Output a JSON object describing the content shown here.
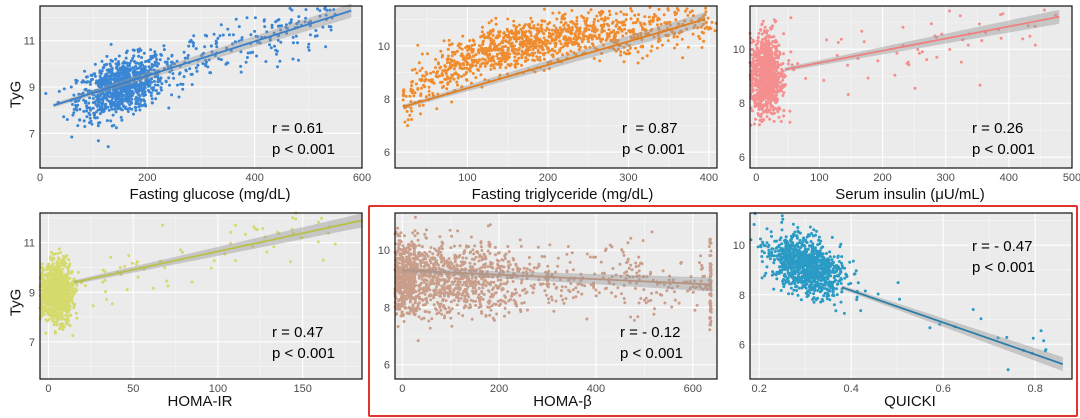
{
  "figure": {
    "highlight_color": "#e0342c",
    "highlight_note": "HOMA-β and QUICKI panels outlined"
  },
  "chart_data": [
    {
      "type": "scatter",
      "id": "glucose",
      "xlabel": "Fasting glucose (mg/dL)",
      "ylabel": "TyG",
      "xlim": [
        0,
        600
      ],
      "ylim": [
        5.5,
        12.5
      ],
      "xticks": [
        "0",
        "200",
        "400",
        "600"
      ],
      "yticks": [
        "7",
        "9",
        "11"
      ],
      "color": "#3a86d4",
      "line_color": "#3a7fc8",
      "fit": {
        "x": [
          25,
          580
        ],
        "y": [
          8.2,
          12.3
        ]
      },
      "cloud": {
        "cx": 150,
        "cy": 9.0,
        "sx": 40,
        "sy": 0.6,
        "n": 900,
        "slope": 0.007,
        "tail_x": [
          200,
          550
        ],
        "tail_n": 220
      },
      "stat_r": "r = 0.61",
      "stat_p": "p < 0.001"
    },
    {
      "type": "scatter",
      "id": "triglyceride",
      "xlabel": "Fasting triglyceride (mg/dL)",
      "ylabel": "",
      "xlim": [
        10,
        410
      ],
      "ylim": [
        5.4,
        11.5
      ],
      "xticks": [
        "100",
        "200",
        "300",
        "400"
      ],
      "yticks": [
        "6",
        "8",
        "10"
      ],
      "color": "#f08c2e",
      "line_color": "#e07f20",
      "fit": {
        "x": [
          20,
          395
        ],
        "y": [
          7.7,
          11.0
        ]
      },
      "cloud": {
        "cx": 150,
        "cy": 9.1,
        "sx": 85,
        "sy": 0.45,
        "n": 1100,
        "curve": "log",
        "tail_x": [
          280,
          400
        ],
        "tail_n": 120
      },
      "stat_r": "r  = 0.87",
      "stat_p": "p < 0.001"
    },
    {
      "type": "scatter",
      "id": "insulin",
      "xlabel": "Serum insulin (μU/mL)",
      "ylabel": "",
      "xlim": [
        -10,
        500
      ],
      "ylim": [
        5.6,
        11.6
      ],
      "xticks": [
        "0",
        "100",
        "200",
        "300",
        "400",
        "500"
      ],
      "yticks": [
        "6",
        "8",
        "10"
      ],
      "color": "#f58f8f",
      "line_color": "#ef8080",
      "fit": {
        "x": [
          45,
          480
        ],
        "y": [
          9.25,
          11.2
        ]
      },
      "cloud": {
        "cx": 15,
        "cy": 9.0,
        "sx": 12,
        "sy": 0.75,
        "n": 900,
        "tail_x": [
          40,
          480
        ],
        "tail_n": 60
      },
      "stat_r": "r = 0.26",
      "stat_p": "p < 0.001"
    },
    {
      "type": "scatter",
      "id": "homa_ir",
      "xlabel": "HOMA-IR",
      "ylabel": "TyG",
      "xlim": [
        -5,
        185
      ],
      "ylim": [
        5.5,
        12.2
      ],
      "xticks": [
        "0",
        "50",
        "100",
        "150"
      ],
      "yticks": [
        "7",
        "9",
        "11"
      ],
      "color": "#d5da6c",
      "line_color": "#b9c04a",
      "fit": {
        "x": [
          15,
          185
        ],
        "y": [
          9.4,
          11.9
        ]
      },
      "cloud": {
        "cx": 5,
        "cy": 9.0,
        "sx": 5,
        "sy": 0.6,
        "n": 900,
        "tail_x": [
          15,
          170
        ],
        "tail_n": 70
      },
      "stat_r": "r = 0.47",
      "stat_p": "p < 0.001"
    },
    {
      "type": "scatter",
      "id": "homa_beta",
      "xlabel": "HOMA-β",
      "ylabel": "",
      "xlim": [
        -15,
        650
      ],
      "ylim": [
        5.5,
        11.3
      ],
      "xticks": [
        "0",
        "200",
        "400",
        "600"
      ],
      "yticks": [
        "6",
        "8",
        "10"
      ],
      "color": "#c99e8a",
      "line_color": "#b79482",
      "fit": {
        "x": [
          0,
          640
        ],
        "y": [
          9.3,
          8.8
        ]
      },
      "cloud": {
        "cx": 70,
        "cy": 9.0,
        "sx": 110,
        "sy": 0.65,
        "n": 1300,
        "tail_x": [
          300,
          640
        ],
        "tail_n": 200,
        "wall": 635
      },
      "stat_r": "r = - 0.12",
      "stat_p": "p < 0.001"
    },
    {
      "type": "scatter",
      "id": "quicki",
      "xlabel": "QUICKI",
      "ylabel": "",
      "xlim": [
        0.18,
        0.88
      ],
      "ylim": [
        4.6,
        11.3
      ],
      "xticks": [
        "0.2",
        "0.4",
        "0.6",
        "0.8"
      ],
      "yticks": [
        "6",
        "8",
        "10"
      ],
      "color": "#2a9bc4",
      "line_color": "#2a7ea8",
      "fit": {
        "x": [
          0.38,
          0.86
        ],
        "y": [
          8.3,
          5.2
        ]
      },
      "cloud": {
        "cx": 0.3,
        "cy": 9.2,
        "sx": 0.04,
        "sy": 0.55,
        "n": 1000,
        "slope": -6.5,
        "tail_x": [
          0.4,
          0.85
        ],
        "tail_n": 25
      },
      "stat_r": "r = - 0.47",
      "stat_p": "p < 0.001"
    }
  ]
}
